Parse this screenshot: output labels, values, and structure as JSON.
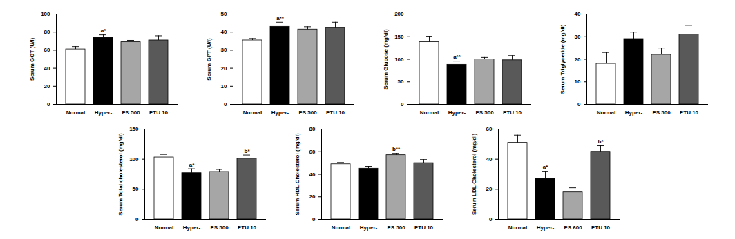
{
  "chart_data": [
    {
      "type": "bar",
      "y_label": "Serum GOT (U/l)",
      "categories": [
        "Normal",
        "Hyper-",
        "PS 500",
        "PTU 10"
      ],
      "values": [
        61,
        74,
        69,
        71
      ],
      "errors": [
        3,
        3,
        2,
        5
      ],
      "annotations": [
        null,
        "a*",
        null,
        null
      ],
      "colors": [
        "#ffffff",
        "#000000",
        "#a6a6a6",
        "#595959"
      ],
      "ylim": [
        0,
        100
      ],
      "yticks": [
        0,
        20,
        40,
        60,
        80,
        100
      ]
    },
    {
      "type": "bar",
      "y_label": "Serum GPT (U/l)",
      "categories": [
        "Normal",
        "Hyper-",
        "PS 500",
        "PTU 10"
      ],
      "values": [
        35.5,
        43,
        41.5,
        42.5
      ],
      "errors": [
        1,
        2.5,
        1.5,
        3
      ],
      "annotations": [
        null,
        "a**",
        null,
        null
      ],
      "colors": [
        "#ffffff",
        "#000000",
        "#a6a6a6",
        "#595959"
      ],
      "ylim": [
        0,
        50
      ],
      "yticks": [
        0,
        10,
        20,
        30,
        40,
        50
      ]
    },
    {
      "type": "bar",
      "y_label": "Serum Glucose (mg/dl)",
      "categories": [
        "Normal",
        "Hyper-",
        "PS 500",
        "PTU 10"
      ],
      "values": [
        138,
        88,
        100,
        98
      ],
      "errors": [
        13,
        8,
        4,
        10
      ],
      "annotations": [
        null,
        "a**",
        null,
        null
      ],
      "colors": [
        "#ffffff",
        "#000000",
        "#a6a6a6",
        "#595959"
      ],
      "ylim": [
        0,
        200
      ],
      "yticks": [
        0,
        50,
        100,
        150,
        200
      ]
    },
    {
      "type": "bar",
      "y_label": "Serum Triglyceride (mg/dl)",
      "categories": [
        "Normal",
        "Hyper-",
        "PS 500",
        "PTU 10"
      ],
      "values": [
        18,
        29,
        22,
        31
      ],
      "errors": [
        5,
        3,
        3,
        4
      ],
      "annotations": [
        null,
        null,
        null,
        null
      ],
      "colors": [
        "#ffffff",
        "#000000",
        "#a6a6a6",
        "#595959"
      ],
      "ylim": [
        0,
        40
      ],
      "yticks": [
        0,
        10,
        20,
        30,
        40
      ]
    },
    {
      "type": "bar",
      "y_label": "Serum Total cholesterol (mg/dl)",
      "categories": [
        "Normal",
        "Hyper-",
        "PS 500",
        "PTU 10"
      ],
      "values": [
        103,
        77,
        79,
        101
      ],
      "errors": [
        5,
        7,
        4,
        6
      ],
      "annotations": [
        null,
        "a*",
        null,
        "b*"
      ],
      "colors": [
        "#ffffff",
        "#000000",
        "#a6a6a6",
        "#595959"
      ],
      "ylim": [
        0,
        150
      ],
      "yticks": [
        0,
        50,
        100,
        150
      ]
    },
    {
      "type": "bar",
      "y_label": "Serum HDL-Cholesterol (mg/dl)",
      "categories": [
        "Normal",
        "Hyper-",
        "PS 500",
        "PTU 10"
      ],
      "values": [
        49,
        45,
        57,
        50
      ],
      "errors": [
        1.5,
        2,
        1.5,
        3
      ],
      "annotations": [
        null,
        null,
        "b**",
        null
      ],
      "colors": [
        "#ffffff",
        "#000000",
        "#a6a6a6",
        "#595959"
      ],
      "ylim": [
        0,
        80
      ],
      "yticks": [
        0,
        20,
        40,
        60,
        80
      ]
    },
    {
      "type": "bar",
      "y_label": "Serum LDL-Cholesterol (mg/dl)",
      "categories": [
        "Normal",
        "Hyper-",
        "PS 600",
        "PTU 10"
      ],
      "values": [
        51,
        27,
        18,
        45
      ],
      "errors": [
        5,
        5,
        3,
        4
      ],
      "annotations": [
        null,
        "a*",
        null,
        "b*"
      ],
      "colors": [
        "#ffffff",
        "#000000",
        "#a6a6a6",
        "#595959"
      ],
      "ylim": [
        0,
        60
      ],
      "yticks": [
        0,
        20,
        40,
        60
      ]
    }
  ]
}
